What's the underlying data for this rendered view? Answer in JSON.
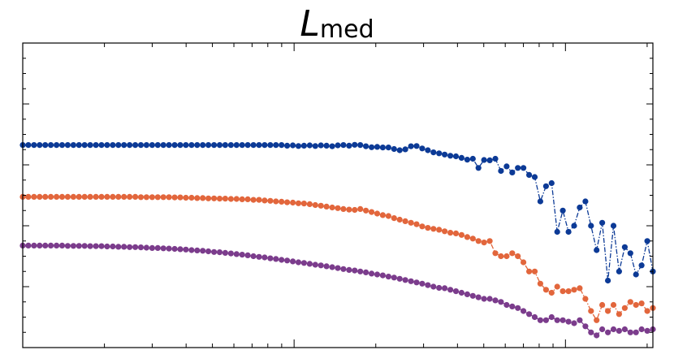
{
  "chart_data": {
    "type": "line",
    "title": "L",
    "title_subscript": "med",
    "xlabel": "",
    "ylabel": "",
    "x_scale": "log",
    "xlim": [
      10,
      2100
    ],
    "ylim": [
      0,
      1
    ],
    "grid": false,
    "tick_labels_shown": false,
    "line_style": "dash-dot with circle markers",
    "series": [
      {
        "color": "#0c3a96",
        "values": [
          0.665,
          0.665,
          0.665,
          0.665,
          0.665,
          0.665,
          0.665,
          0.665,
          0.665,
          0.665,
          0.665,
          0.665,
          0.665,
          0.665,
          0.665,
          0.665,
          0.665,
          0.665,
          0.665,
          0.665,
          0.665,
          0.665,
          0.665,
          0.665,
          0.665,
          0.665,
          0.665,
          0.665,
          0.665,
          0.665,
          0.665,
          0.665,
          0.665,
          0.665,
          0.665,
          0.665,
          0.665,
          0.665,
          0.665,
          0.665,
          0.665,
          0.665,
          0.665,
          0.665,
          0.665,
          0.665,
          0.665,
          0.663,
          0.664,
          0.662,
          0.663,
          0.664,
          0.662,
          0.664,
          0.663,
          0.661,
          0.664,
          0.665,
          0.663,
          0.666,
          0.665,
          0.661,
          0.658,
          0.659,
          0.657,
          0.657,
          0.652,
          0.648,
          0.651,
          0.661,
          0.662,
          0.654,
          0.648,
          0.641,
          0.638,
          0.634,
          0.63,
          0.628,
          0.623,
          0.617,
          0.62,
          0.59,
          0.616,
          0.615,
          0.62,
          0.58,
          0.595,
          0.575,
          0.59,
          0.59,
          0.567,
          0.56,
          0.48,
          0.53,
          0.54,
          0.38,
          0.45,
          0.38,
          0.4,
          0.46,
          0.48,
          0.4,
          0.32,
          0.41,
          0.22,
          0.4,
          0.25,
          0.33,
          0.31,
          0.24,
          0.27,
          0.35,
          0.25
        ],
        "x_start": 10,
        "x_end": 2100
      },
      {
        "color": "#e2663c",
        "values": [
          0.495,
          0.495,
          0.495,
          0.495,
          0.495,
          0.495,
          0.495,
          0.495,
          0.495,
          0.495,
          0.495,
          0.495,
          0.495,
          0.495,
          0.495,
          0.495,
          0.495,
          0.495,
          0.495,
          0.495,
          0.495,
          0.494,
          0.494,
          0.494,
          0.494,
          0.494,
          0.494,
          0.493,
          0.493,
          0.492,
          0.492,
          0.491,
          0.491,
          0.49,
          0.49,
          0.489,
          0.489,
          0.488,
          0.488,
          0.487,
          0.487,
          0.485,
          0.485,
          0.483,
          0.482,
          0.48,
          0.479,
          0.477,
          0.476,
          0.474,
          0.473,
          0.471,
          0.468,
          0.466,
          0.463,
          0.46,
          0.458,
          0.455,
          0.453,
          0.452,
          0.455,
          0.45,
          0.445,
          0.44,
          0.435,
          0.432,
          0.425,
          0.42,
          0.415,
          0.41,
          0.405,
          0.398,
          0.393,
          0.39,
          0.387,
          0.382,
          0.377,
          0.375,
          0.37,
          0.363,
          0.358,
          0.35,
          0.345,
          0.35,
          0.31,
          0.3,
          0.3,
          0.31,
          0.3,
          0.28,
          0.25,
          0.25,
          0.21,
          0.19,
          0.18,
          0.2,
          0.185,
          0.185,
          0.19,
          0.195,
          0.16,
          0.12,
          0.09,
          0.14,
          0.12,
          0.14,
          0.11,
          0.13,
          0.15,
          0.14,
          0.145,
          0.12,
          0.13
        ],
        "x_start": 10,
        "x_end": 2100
      },
      {
        "color": "#7b3c8c",
        "values": [
          0.335,
          0.335,
          0.335,
          0.335,
          0.335,
          0.335,
          0.335,
          0.335,
          0.334,
          0.334,
          0.334,
          0.334,
          0.333,
          0.333,
          0.333,
          0.332,
          0.332,
          0.331,
          0.331,
          0.33,
          0.33,
          0.329,
          0.328,
          0.327,
          0.327,
          0.326,
          0.325,
          0.324,
          0.323,
          0.322,
          0.32,
          0.319,
          0.318,
          0.316,
          0.314,
          0.313,
          0.311,
          0.309,
          0.307,
          0.305,
          0.303,
          0.3,
          0.298,
          0.296,
          0.293,
          0.291,
          0.288,
          0.286,
          0.283,
          0.28,
          0.278,
          0.275,
          0.272,
          0.27,
          0.267,
          0.264,
          0.261,
          0.258,
          0.255,
          0.253,
          0.25,
          0.247,
          0.243,
          0.24,
          0.237,
          0.233,
          0.23,
          0.226,
          0.222,
          0.218,
          0.214,
          0.21,
          0.205,
          0.2,
          0.196,
          0.195,
          0.19,
          0.185,
          0.18,
          0.175,
          0.17,
          0.165,
          0.16,
          0.16,
          0.155,
          0.15,
          0.14,
          0.135,
          0.13,
          0.12,
          0.11,
          0.1,
          0.09,
          0.09,
          0.1,
          0.09,
          0.09,
          0.085,
          0.08,
          0.09,
          0.07,
          0.05,
          0.04,
          0.06,
          0.05,
          0.06,
          0.055,
          0.06,
          0.05,
          0.05,
          0.06,
          0.055,
          0.06
        ],
        "x_start": 10,
        "x_end": 2100
      }
    ]
  }
}
